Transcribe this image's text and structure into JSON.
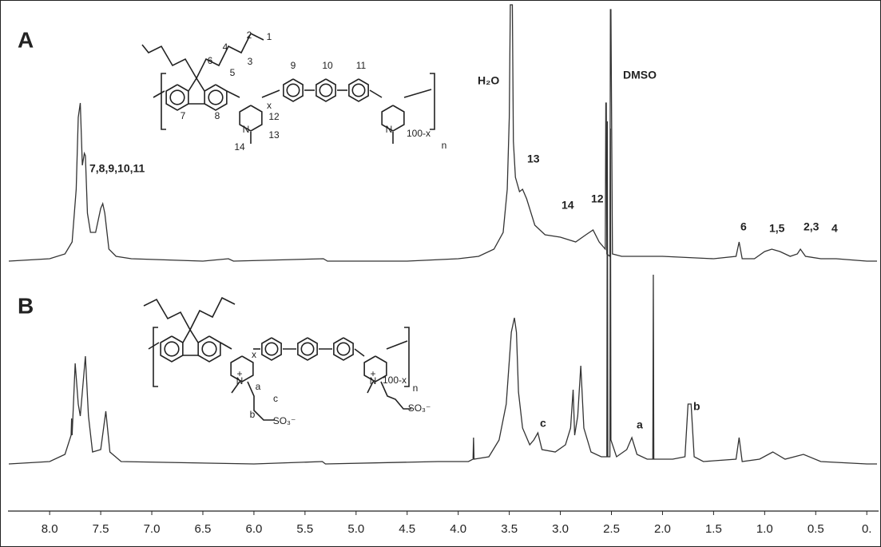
{
  "chart_data": {
    "type": "line",
    "xlim": [
      8.4,
      -0.1
    ],
    "xticks": [
      {
        "value": 8,
        "label": "8.0"
      },
      {
        "value": 7.5,
        "label": "7.5"
      },
      {
        "value": 7,
        "label": "7.0"
      },
      {
        "value": 6.5,
        "label": "6.5"
      },
      {
        "value": 6,
        "label": "6.0"
      },
      {
        "value": 5.5,
        "label": "5.5"
      },
      {
        "value": 5,
        "label": "5.0"
      },
      {
        "value": 4.5,
        "label": "4.5"
      },
      {
        "value": 4,
        "label": "4.0"
      },
      {
        "value": 3.5,
        "label": "3.5"
      },
      {
        "value": 3,
        "label": "3.0"
      },
      {
        "value": 2.5,
        "label": "2.5"
      },
      {
        "value": 2,
        "label": "2.0"
      },
      {
        "value": 1.5,
        "label": "1.5"
      },
      {
        "value": 1,
        "label": "1.0"
      },
      {
        "value": 0.5,
        "label": "0.5"
      },
      {
        "value": 0,
        "label": "0."
      }
    ],
    "series": [
      {
        "color": "#333333",
        "x": [
          8.4,
          8.0,
          7.85,
          7.78,
          7.74,
          7.72,
          7.7,
          7.68,
          7.66,
          7.65,
          7.63,
          7.6,
          7.55,
          7.5,
          7.48,
          7.46,
          7.42,
          7.35,
          7.2,
          6.5,
          6.25,
          6.2,
          5.32,
          5.28,
          4.5,
          4.0,
          3.8,
          3.65,
          3.56,
          3.52,
          3.5,
          3.49,
          3.47,
          3.46,
          3.44,
          3.4,
          3.37,
          3.33,
          3.25,
          3.15,
          3.0,
          2.85,
          2.75,
          2.68,
          2.62,
          2.56,
          2.555,
          2.55,
          2.545,
          2.515,
          2.51,
          2.505,
          2.49,
          2.4,
          2.0,
          1.5,
          1.28,
          1.25,
          1.22,
          1.1,
          1.0,
          0.93,
          0.85,
          0.75,
          0.68,
          0.65,
          0.6,
          0.45,
          0.3,
          0.0,
          -0.1
        ],
        "values": [
          0,
          1,
          3,
          8,
          30,
          60,
          66,
          40,
          45,
          44,
          20,
          12,
          12,
          22,
          24,
          20,
          5,
          2,
          1,
          0,
          1,
          0,
          1,
          0,
          0,
          1,
          2,
          5,
          12,
          30,
          60,
          107,
          107,
          50,
          35,
          29,
          30,
          26,
          15,
          11,
          10,
          8,
          11,
          13,
          8,
          5,
          66,
          66,
          3,
          2,
          105,
          105,
          3,
          2,
          2,
          1,
          2,
          8,
          1,
          1,
          4,
          5,
          4,
          2,
          3,
          5,
          2,
          1,
          1,
          0,
          0
        ]
      },
      {
        "color": "#333333",
        "x": [
          8.4,
          8.0,
          7.85,
          7.79,
          7.785,
          7.78,
          7.75,
          7.72,
          7.7,
          7.65,
          7.62,
          7.58,
          7.5,
          7.45,
          7.41,
          7.3,
          6.0,
          5.33,
          5.3,
          4.2,
          3.9,
          3.855,
          3.85,
          3.845,
          3.7,
          3.6,
          3.53,
          3.48,
          3.45,
          3.43,
          3.41,
          3.37,
          3.3,
          3.26,
          3.22,
          3.18,
          3.05,
          2.95,
          2.9,
          2.875,
          2.86,
          2.83,
          2.8,
          2.77,
          2.7,
          2.6,
          2.545,
          2.54,
          2.535,
          2.515,
          2.51,
          2.505,
          2.45,
          2.35,
          2.3,
          2.25,
          2.15,
          2.095,
          2.09,
          2.085,
          1.9,
          1.78,
          1.75,
          1.72,
          1.69,
          1.6,
          1.28,
          1.25,
          1.22,
          1.05,
          0.92,
          0.8,
          0.62,
          0.45,
          0.0,
          -0.1
        ],
        "values": [
          0,
          1,
          4,
          12,
          19,
          12,
          42,
          25,
          20,
          45,
          20,
          5,
          6,
          22,
          5,
          1,
          0,
          1,
          0,
          1,
          1,
          2,
          11,
          2,
          3,
          10,
          25,
          55,
          61,
          55,
          30,
          15,
          8,
          10,
          13,
          6,
          5,
          8,
          15,
          31,
          12,
          20,
          41,
          15,
          5,
          3,
          3,
          143,
          3,
          3,
          140,
          10,
          3,
          6,
          11,
          4,
          2,
          2,
          79,
          2,
          2,
          3,
          25,
          25,
          3,
          1,
          2,
          11,
          1,
          2,
          5,
          2,
          4,
          1,
          0,
          0
        ]
      }
    ],
    "annotations": [
      "A",
      "7,8,9,10,11",
      "H₂O",
      "DMSO",
      "13",
      "14",
      "12",
      "6",
      "1,5",
      "2,3",
      "4",
      "B",
      "c",
      "a",
      "b"
    ]
  },
  "structures": {
    "a": {
      "labels": [
        "1",
        "2",
        "3",
        "4",
        "5",
        "6",
        "7",
        "8",
        "9",
        "10",
        "11",
        "12",
        "13",
        "14",
        "x",
        "100-x",
        "n",
        "N",
        "N"
      ]
    },
    "b": {
      "labels": [
        "a",
        "b",
        "c",
        "SO₃⁻",
        "SO₃⁻",
        "x",
        "100-x",
        "n",
        "N",
        "N",
        "+",
        "+"
      ]
    }
  }
}
